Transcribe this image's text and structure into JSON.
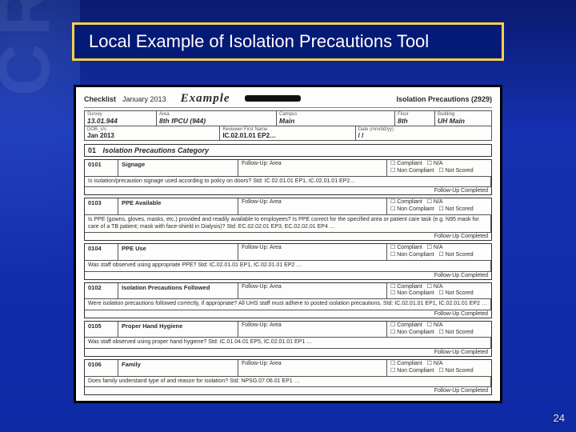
{
  "slide": {
    "title": "Local Example of Isolation Precautions Tool",
    "page_number": "24",
    "title_border_color": "#f6d24a",
    "title_bg_color": "#041a77",
    "title_text_color": "#ffffff",
    "background_gradient": [
      "#0a1a6e",
      "#1530b0",
      "#0e2aa5"
    ]
  },
  "document": {
    "header": {
      "label": "Checklist",
      "date": "January 2013",
      "example_word": "Example",
      "title_right": "Isolation Precautions (2929)"
    },
    "top_row": {
      "survey_label": "Survey",
      "survey_value": "13.01.944",
      "area_label": "Area",
      "area_value": "8th fPCU (944)",
      "reviewer_label": "Reviewer Last Name",
      "campus_label": "Campus",
      "campus_value": "Main",
      "floor_label": "Floor",
      "floor_value": "8th",
      "building_label": "Building",
      "building_value": "UH Main"
    },
    "sub_row": {
      "dob_label": "DOB_s/s",
      "name_label": "Reviewer First Name",
      "date_label": "Date (mm/dd/yy)",
      "month_value": "Jan 2013",
      "ep_value": "IC.02.01.01  EP2…",
      "date_value": "/    /"
    },
    "category": {
      "num": "01",
      "title": "Isolation Precautions  Category"
    },
    "followup_label": "Follow-Up: Area",
    "followup_completed": "Follow-Up Completed",
    "opts": {
      "compliant": "Compliant",
      "non_compliant": "Non Compliant",
      "na": "N/A",
      "not_scored": "Not Scored"
    },
    "items": [
      {
        "code": "0101",
        "name": "Signage",
        "desc": "Is isolation/precaution signage used according to policy on doors?  Std: IC.02.01.01  EP1, IC.02.01.01  EP2…"
      },
      {
        "code": "0103",
        "name": "PPE Available",
        "desc": "Is PPE (gowns, gloves, masks, etc.) provided and readily available to employees? Is PPE correct for the specified area or patient care task (e.g. N95 mask for care of a TB patient; mask with face-shield in Dialysis)?  Std: EC.02.02.01  EP3, EC.02.02.01  EP4 …"
      },
      {
        "code": "0104",
        "name": "PPE Use",
        "desc": "Was staff observed using appropriate PPE?  Std: IC.02.01.01  EP1, IC.02.01.01  EP2 …"
      },
      {
        "code": "0102",
        "name": "Isolation Precautions Followed",
        "desc": "Were isolation precautions followed correctly, if appropriate? All UHS staff must adhere to posted isolation precautions.  Std: IC.02.01.01  EP1, IC.02.01.01  EP2 …"
      },
      {
        "code": "0105",
        "name": "Proper Hand Hygiene",
        "desc": "Was staff observed using proper hand hygiene?  Std: IC.01.04.01  EP5, IC.02.01.01  EP1 …"
      },
      {
        "code": "0106",
        "name": "Family",
        "desc": "Does family understand type of and reason for isolation?  Std: NPSG.07.06.01  EP1 …"
      }
    ]
  }
}
